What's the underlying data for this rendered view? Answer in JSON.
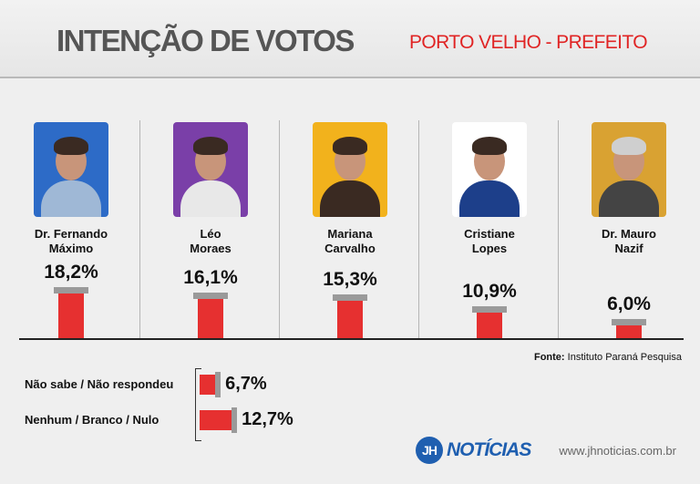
{
  "header": {
    "title": "INTENÇÃO DE VOTOS",
    "subtitle": "PORTO VELHO - PREFEITO"
  },
  "chart_data": {
    "type": "bar",
    "title": "INTENÇÃO DE VOTOS",
    "subtitle": "PORTO VELHO - PREFEITO",
    "unit": "%",
    "categories": [
      [
        "Dr. Fernando",
        "Máximo"
      ],
      [
        "Léo",
        "Moraes"
      ],
      [
        "Mariana",
        "Carvalho"
      ],
      [
        "Cristiane",
        "Lopes"
      ],
      [
        "Dr. Mauro",
        "Nazif"
      ]
    ],
    "values": [
      18.2,
      16.1,
      15.3,
      10.9,
      6.0
    ],
    "value_labels": [
      "18,2%",
      "16,1%",
      "15,3%",
      "10,9%",
      "6,0%"
    ],
    "photo_colors": [
      "#2d6bc7",
      "#7a3fa8",
      "#f2b21c",
      "#ffffff",
      "#d9a232"
    ],
    "secondary": {
      "type": "bar-horizontal",
      "categories": [
        "Não sabe / Não respondeu",
        "Nenhum / Branco / Nulo"
      ],
      "values": [
        6.7,
        12.7
      ],
      "value_labels": [
        "6,7%",
        "12,7%"
      ]
    },
    "bar_color": "#e63030"
  },
  "source": {
    "label": "Fonte:",
    "text": "Instituto Paraná Pesquisa"
  },
  "footer": {
    "logo_mark": "JH",
    "logo_text": "NOTÍCIAS",
    "website": "www.jhnoticias.com.br"
  }
}
